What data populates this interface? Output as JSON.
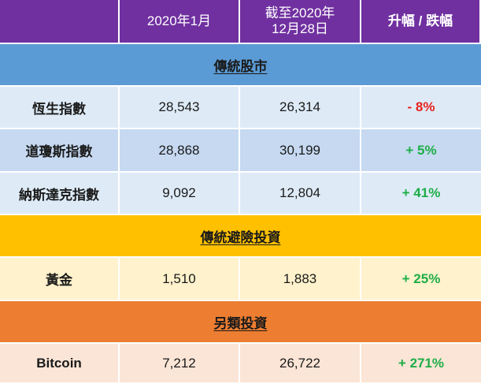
{
  "header": {
    "col1": "2020年1月",
    "col2_line1": "截至2020年",
    "col2_line2": "12月28日",
    "col3": "升幅 / 跌幅"
  },
  "sections": {
    "traditional_stocks": "傳統股市",
    "safe_haven": "傳統避險投資",
    "alternative": "另類投資"
  },
  "rows": [
    {
      "name": "恆生指數",
      "jan2020": "28,543",
      "dec2020": "26,314",
      "change": "- 8%"
    },
    {
      "name": "道瓊斯指數",
      "jan2020": "28,868",
      "dec2020": "30,199",
      "change": "+ 5%"
    },
    {
      "name": "納斯達克指數",
      "jan2020": "9,092",
      "dec2020": "12,804",
      "change": "+ 41%"
    },
    {
      "name": "黃金",
      "jan2020": "1,510",
      "dec2020": "1,883",
      "change": "+ 25%"
    },
    {
      "name": "Bitcoin",
      "jan2020": "7,212",
      "dec2020": "26,722",
      "change": "+ 271%"
    }
  ],
  "colors": {
    "header_bg": "#7030a0",
    "section_stocks": "#5b9bd5",
    "section_safe_haven": "#ffc000",
    "section_alternative": "#ed7d31",
    "negative": "#e8201e",
    "positive": "#1eae47"
  }
}
